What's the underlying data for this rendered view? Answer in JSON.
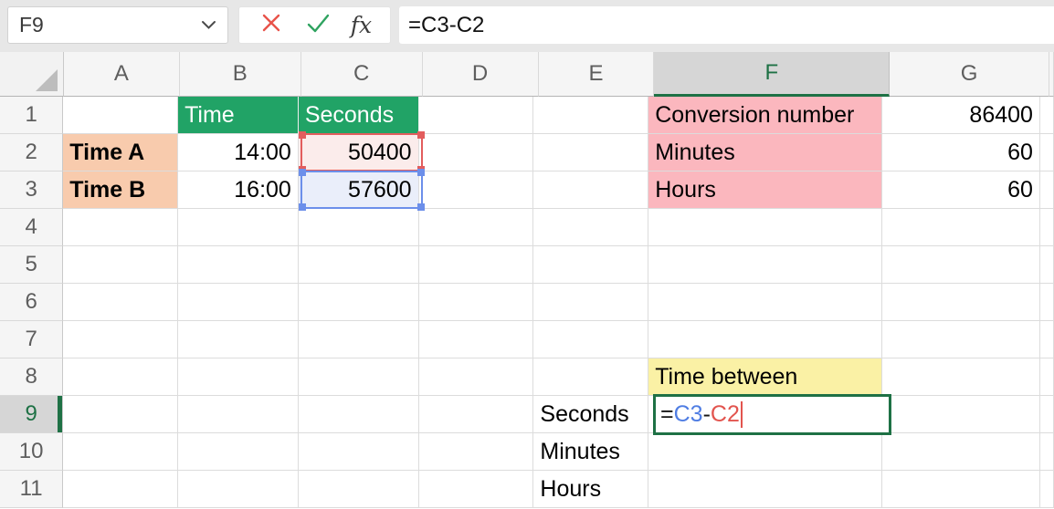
{
  "formula_bar": {
    "name_box_value": "F9",
    "formula": "=C3-C2",
    "cancel_icon": "x-icon",
    "confirm_icon": "check-icon",
    "function_icon": "fx-icon",
    "function_label": "fx"
  },
  "colors": {
    "accent_green": "#1E7145",
    "cell_green": "#21A366",
    "peach": "#F8CBAD",
    "pink": "#FBB7BE",
    "yellow": "#FAF1A5",
    "ref_red": "#E25D5D",
    "ref_red_fill": "#FBECEB",
    "ref_blue": "#6C8FEA",
    "ref_blue_fill": "#EAEEFA",
    "formula_blue": "#4F7DE3",
    "formula_red": "#E2544E"
  },
  "grid": {
    "column_headers": [
      "A",
      "B",
      "C",
      "D",
      "E",
      "F",
      "G"
    ],
    "selected_column": "F",
    "row_headers": [
      "1",
      "2",
      "3",
      "4",
      "5",
      "6",
      "7",
      "8",
      "9",
      "10",
      "11"
    ],
    "selected_row": "9",
    "cells": [
      {
        "ref": "B1",
        "text": "Time",
        "style": "green-header"
      },
      {
        "ref": "C1",
        "text": "Seconds",
        "style": "green-header"
      },
      {
        "ref": "F1",
        "text": "Conversion number",
        "style": "pink"
      },
      {
        "ref": "G1",
        "text": "86400",
        "style": "number"
      },
      {
        "ref": "A2",
        "text": "Time A",
        "style": "peach"
      },
      {
        "ref": "B2",
        "text": "14:00",
        "style": "number"
      },
      {
        "ref": "C2",
        "text": "50400",
        "style": "number red-fill"
      },
      {
        "ref": "F2",
        "text": "Minutes",
        "style": "pink"
      },
      {
        "ref": "G2",
        "text": "60",
        "style": "number"
      },
      {
        "ref": "A3",
        "text": "Time B",
        "style": "peach"
      },
      {
        "ref": "B3",
        "text": "16:00",
        "style": "number"
      },
      {
        "ref": "C3",
        "text": "57600",
        "style": "number blue-fill"
      },
      {
        "ref": "F3",
        "text": "Hours",
        "style": "pink"
      },
      {
        "ref": "G3",
        "text": "60",
        "style": "number"
      },
      {
        "ref": "F8",
        "text": "Time between",
        "style": "yellow"
      },
      {
        "ref": "E9",
        "text": "Seconds",
        "style": ""
      },
      {
        "ref": "E10",
        "text": "Minutes",
        "style": ""
      },
      {
        "ref": "E11",
        "text": "Hours",
        "style": ""
      }
    ],
    "reference_highlights": [
      {
        "ref": "C2",
        "color": "red"
      },
      {
        "ref": "C3",
        "color": "blue"
      }
    ],
    "active_cell": {
      "ref": "F9",
      "formula_parts": [
        {
          "text": "=",
          "color": "black"
        },
        {
          "text": "C3",
          "color": "blue"
        },
        {
          "text": "-",
          "color": "black"
        },
        {
          "text": "C2",
          "color": "red"
        }
      ]
    }
  }
}
